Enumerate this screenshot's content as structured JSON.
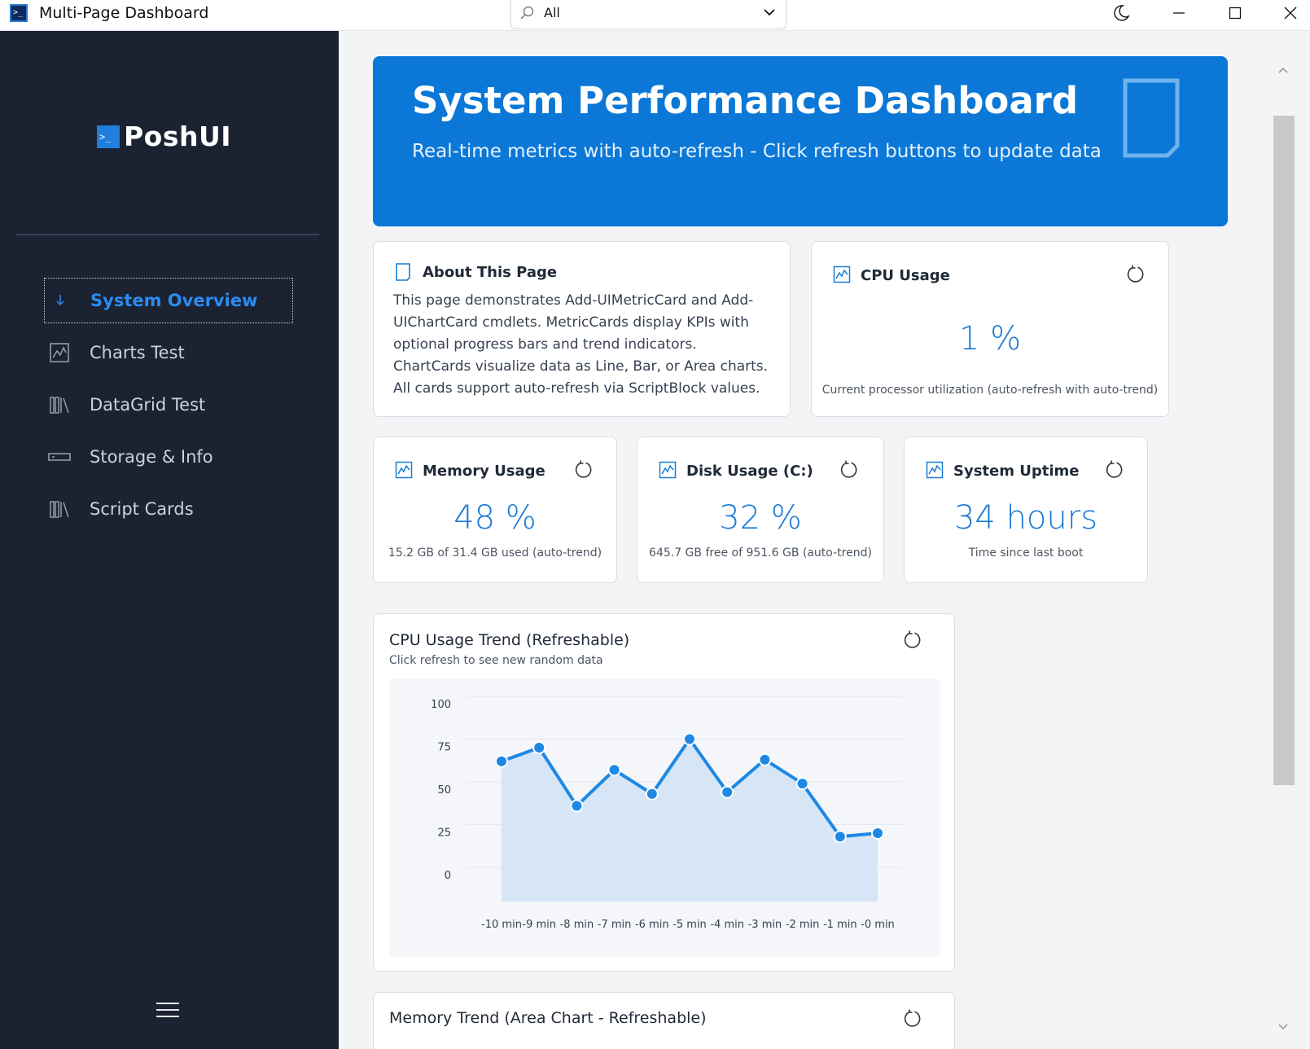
{
  "window": {
    "title": "Multi-Page Dashboard",
    "filter_value": "All"
  },
  "sidebar": {
    "logo_text": "PoshUI",
    "items": [
      {
        "label": "System Overview",
        "icon": "arrow-down-icon",
        "active": true
      },
      {
        "label": "Charts Test",
        "icon": "chart-icon",
        "active": false
      },
      {
        "label": "DataGrid Test",
        "icon": "library-icon",
        "active": false
      },
      {
        "label": "Storage & Info",
        "icon": "drive-icon",
        "active": false
      },
      {
        "label": "Script Cards",
        "icon": "library-icon",
        "active": false
      }
    ]
  },
  "hero": {
    "title": "System Performance Dashboard",
    "subtitle": "Real-time metrics with auto-refresh - Click refresh buttons to update data"
  },
  "about": {
    "title": "About This Page",
    "text": "This page demonstrates Add-UIMetricCard and Add-UIChartCard cmdlets. MetricCards display KPIs with optional progress bars and trend indicators. ChartCards visualize data as Line, Bar, or Area charts. All cards support auto-refresh via ScriptBlock values."
  },
  "metrics": {
    "cpu": {
      "title": "CPU Usage",
      "value": "1 %",
      "desc": "Current processor utilization (auto-refresh with auto-trend)"
    },
    "memory": {
      "title": "Memory Usage",
      "value": "48 %",
      "desc": "15.2 GB of 31.4 GB used (auto-trend)"
    },
    "disk": {
      "title": "Disk Usage (C:)",
      "value": "32 %",
      "desc": "645.7 GB free of 951.6 GB (auto-trend)"
    },
    "uptime": {
      "title": "System Uptime",
      "value": "34 hours",
      "desc": "Time since last boot"
    }
  },
  "cpu_chart_card": {
    "title": "CPU Usage Trend (Refreshable)",
    "subtitle": "Click refresh to see new random data"
  },
  "memory_chart_card": {
    "title": "Memory Trend (Area Chart - Refreshable)"
  },
  "colors": {
    "accent": "#0b78d7",
    "sidebar_bg": "#1b2232",
    "line": "#1e88e5",
    "area_fill": "#d6e6f7"
  },
  "chart_data": {
    "type": "area",
    "categories": [
      "-10 min",
      "-9 min",
      "-8 min",
      "-7 min",
      "-6 min",
      "-5 min",
      "-4 min",
      "-3 min",
      "-2 min",
      "-1 min",
      "-0 min"
    ],
    "values": [
      62,
      70,
      36,
      57,
      43,
      75,
      44,
      63,
      49,
      18,
      20
    ],
    "yticks": [
      100,
      75,
      50,
      25,
      0
    ],
    "ylim": [
      -20,
      100
    ],
    "grid": true,
    "title": "",
    "xlabel": "",
    "ylabel": ""
  }
}
